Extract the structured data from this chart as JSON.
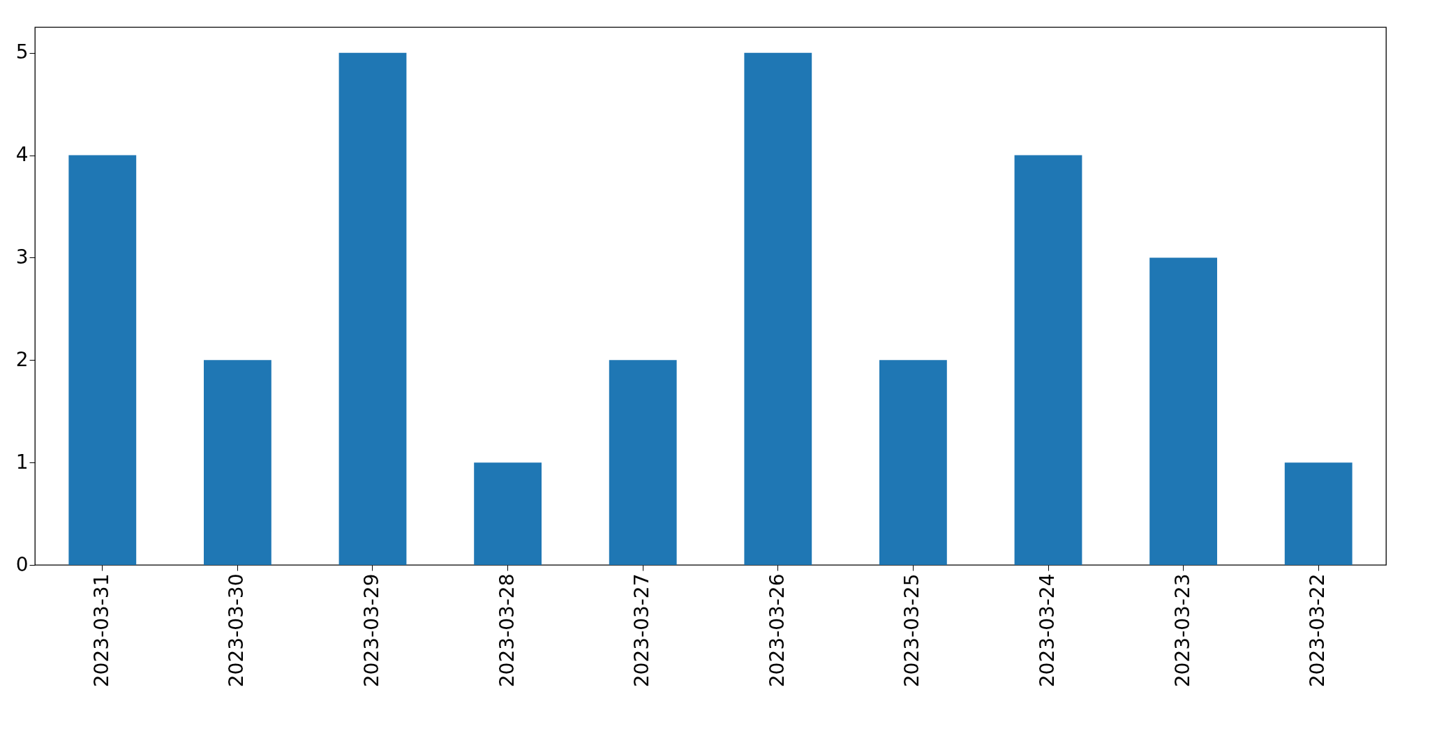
{
  "chart_data": {
    "type": "bar",
    "categories": [
      "2023-03-31",
      "2023-03-30",
      "2023-03-29",
      "2023-03-28",
      "2023-03-27",
      "2023-03-26",
      "2023-03-25",
      "2023-03-24",
      "2023-03-23",
      "2023-03-22"
    ],
    "values": [
      4,
      2,
      5,
      1,
      2,
      5,
      2,
      4,
      3,
      1
    ],
    "color": "#1f77b4",
    "ylim": [
      0,
      5.25
    ],
    "yticks": [
      0,
      1,
      2,
      3,
      4,
      5
    ],
    "grid": false
  }
}
